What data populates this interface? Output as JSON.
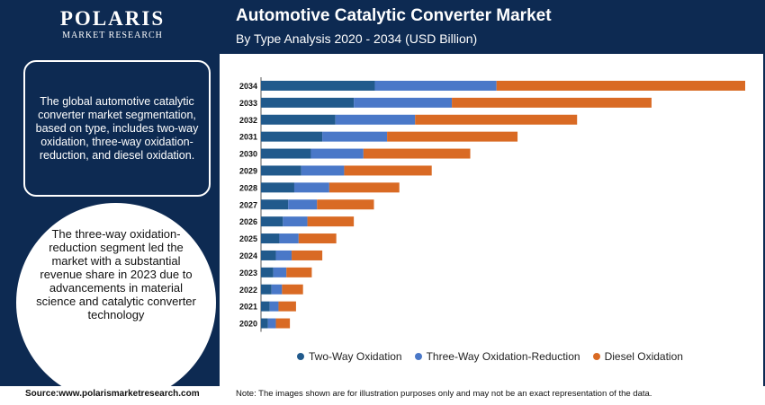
{
  "brand": {
    "logo_main": "POLARIS",
    "logo_sub": "MARKET RESEARCH"
  },
  "summary_text": "The global automotive catalytic converter market segmentation, based on type, includes two-way oxidation, three-way oxidation-reduction, and diesel oxidation.",
  "highlight_text": "The three-way oxidation-reduction segment led the market with a substantial revenue share in 2023 due to advancements in material science and catalytic converter technology",
  "footer": {
    "source": "Source:www.polarismarketresearch.com",
    "note": "Note: The images shown are for illustration purposes only and may not be an exact representation of the data."
  },
  "colors": {
    "navy": "#0d2a52",
    "two_way": "#215a8c",
    "three_way": "#4a78c8",
    "diesel": "#d96a24"
  },
  "chart_data": {
    "type": "bar",
    "orientation": "horizontal",
    "stacked": true,
    "title": "Automotive Catalytic Converter Market",
    "subtitle": "By Type Analysis 2020 - 2034 (USD Billion)",
    "xlabel": "",
    "ylabel": "",
    "categories": [
      "2034",
      "2033",
      "2032",
      "2031",
      "2030",
      "2029",
      "2028",
      "2027",
      "2026",
      "2025",
      "2024",
      "2023",
      "2022",
      "2021",
      "2020"
    ],
    "series": [
      {
        "name": "Two-Way Oxidation",
        "color": "#215a8c",
        "values": [
          13.0,
          10.6,
          8.5,
          7.0,
          5.7,
          4.6,
          3.8,
          3.1,
          2.5,
          2.1,
          1.7,
          1.4,
          1.2,
          1.0,
          0.8
        ]
      },
      {
        "name": "Three-Way Oxidation-Reduction",
        "color": "#4a78c8",
        "values": [
          13.9,
          11.2,
          9.1,
          7.4,
          6.0,
          4.9,
          4.0,
          3.3,
          2.8,
          2.2,
          1.8,
          1.5,
          1.2,
          1.0,
          0.9
        ]
      },
      {
        "name": "Diesel Oxidation",
        "color": "#d96a24",
        "values": [
          28.4,
          22.8,
          18.5,
          14.9,
          12.2,
          10.0,
          8.0,
          6.5,
          5.3,
          4.3,
          3.5,
          2.9,
          2.4,
          2.0,
          1.6
        ]
      }
    ],
    "legend_position": "bottom",
    "grid": false
  }
}
